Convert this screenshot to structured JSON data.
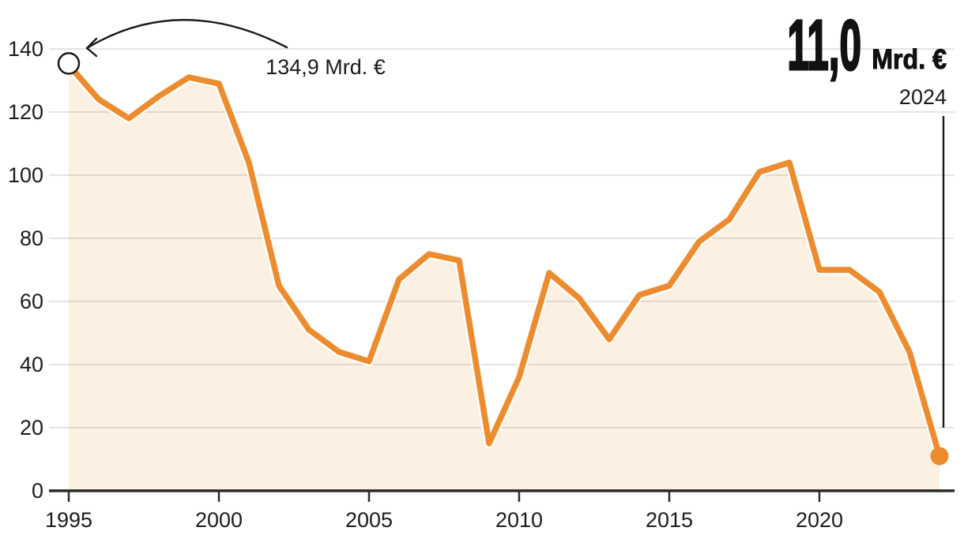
{
  "chart_data": {
    "type": "area",
    "x": [
      1995,
      1996,
      1997,
      1998,
      1999,
      2000,
      2001,
      2002,
      2003,
      2004,
      2005,
      2006,
      2007,
      2008,
      2009,
      2010,
      2011,
      2012,
      2013,
      2014,
      2015,
      2016,
      2017,
      2018,
      2019,
      2020,
      2021,
      2022,
      2023,
      2024
    ],
    "values": [
      134.9,
      124,
      118,
      125,
      131,
      129,
      104,
      65,
      51,
      44,
      41,
      67,
      75,
      73,
      15,
      36,
      69,
      61,
      48,
      62,
      65,
      79,
      86,
      101,
      104,
      70,
      70,
      63,
      44,
      11.0
    ],
    "title": "",
    "xlabel": "",
    "ylabel": "",
    "xlim": [
      1995,
      2024
    ],
    "ylim": [
      0,
      140
    ],
    "x_ticks": [
      1995,
      2000,
      2005,
      2010,
      2015,
      2020
    ],
    "y_ticks": [
      0,
      20,
      40,
      60,
      80,
      100,
      120,
      140
    ],
    "grid": true,
    "legend": "none",
    "unit": "Mrd. €",
    "annotations": {
      "first_point": {
        "year": 1995,
        "value": 134.9,
        "label": "134,9 Mrd. €"
      },
      "last_point": {
        "year": 2024,
        "value": 11.0,
        "value_label": "11,0",
        "unit_label": "Mrd. €",
        "year_label": "2024"
      }
    },
    "colors": {
      "line": "#ED8C2E",
      "fill": "#FCF0E2",
      "grid": "#E6E6E6",
      "axis": "#2B2B2B",
      "text": "#1C1C1C",
      "annotation": "#1A1A1A",
      "end_marker": "#ED8C2E",
      "start_marker_ring": "#1A1A1A",
      "start_marker_fill": "#FFFFFF"
    }
  }
}
